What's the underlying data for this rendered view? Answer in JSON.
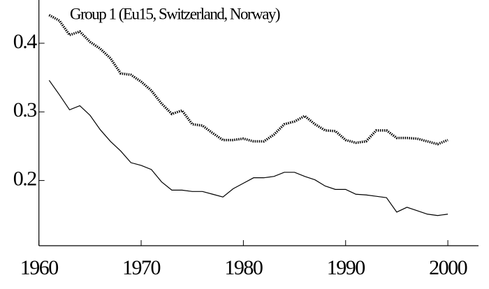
{
  "chart_data": {
    "type": "line",
    "title": "Group 1  (Eu15, Switzerland, Norway)",
    "x": [
      1961,
      1962,
      1963,
      1964,
      1965,
      1966,
      1967,
      1968,
      1969,
      1970,
      1971,
      1972,
      1973,
      1974,
      1975,
      1976,
      1977,
      1978,
      1979,
      1980,
      1981,
      1982,
      1983,
      1984,
      1985,
      1986,
      1987,
      1988,
      1989,
      1990,
      1991,
      1992,
      1993,
      1994,
      1995,
      1996,
      1997,
      1998,
      1999,
      2000
    ],
    "series": [
      {
        "color": "#000000",
        "dash": "dotted",
        "values": [
          0.441,
          0.433,
          0.412,
          0.417,
          0.402,
          0.392,
          0.378,
          0.356,
          0.354,
          0.344,
          0.331,
          0.312,
          0.297,
          0.302,
          0.282,
          0.28,
          0.269,
          0.259,
          0.259,
          0.261,
          0.257,
          0.257,
          0.267,
          0.282,
          0.286,
          0.294,
          0.282,
          0.273,
          0.272,
          0.259,
          0.255,
          0.257,
          0.273,
          0.273,
          0.262,
          0.262,
          0.261,
          0.257,
          0.253,
          0.259
        ]
      },
      {
        "color": "#000000",
        "dash": "solid",
        "values": [
          0.346,
          0.325,
          0.303,
          0.309,
          0.295,
          0.274,
          0.257,
          0.243,
          0.226,
          0.222,
          0.216,
          0.198,
          0.186,
          0.186,
          0.184,
          0.184,
          0.18,
          0.176,
          0.188,
          0.196,
          0.204,
          0.204,
          0.206,
          0.212,
          0.212,
          0.206,
          0.201,
          0.192,
          0.187,
          0.187,
          0.18,
          0.179,
          0.177,
          0.175,
          0.154,
          0.161,
          0.156,
          0.151,
          0.149,
          0.151
        ]
      }
    ],
    "xlim": [
      1960,
      2003
    ],
    "xticks": [
      1960,
      1970,
      1980,
      1990,
      2000
    ],
    "ylim": [
      0.105,
      0.463
    ],
    "yticks": [
      0.2,
      0.3,
      0.4
    ]
  }
}
